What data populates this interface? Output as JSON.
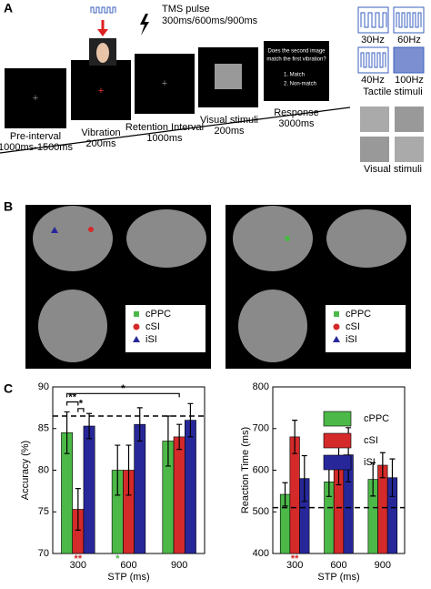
{
  "panel_a": {
    "label": "A",
    "tms": [
      "TMS pulse",
      "300ms/600ms/900ms"
    ],
    "screens": [
      {
        "name": "Pre-interval",
        "time": "1000ms-1500ms"
      },
      {
        "name": "Vibration",
        "time": "200ms"
      },
      {
        "name": "Retention Interval",
        "time": "1000ms"
      },
      {
        "name": "Visual stimuli",
        "time": "200ms"
      },
      {
        "name": "Response",
        "time": "3000ms"
      }
    ],
    "response_text": [
      "Does the second image",
      "match the first vibration?",
      "1. Match",
      "2. Non-match"
    ],
    "frequencies": [
      "30Hz",
      "60Hz",
      "40Hz",
      "100Hz"
    ],
    "tactile_label": "Tactile stimuli",
    "visual_label": "Visual stimuli"
  },
  "panel_b": {
    "label": "B",
    "legends": [
      [
        "cPPC",
        "cSI",
        "iSI"
      ],
      [
        "cPPC",
        "cSI",
        "iSI"
      ]
    ]
  },
  "panel_c": {
    "label": "C"
  },
  "chart_data": [
    {
      "type": "bar",
      "y_label": "Accuracy (%)",
      "x_label": "STP (ms)",
      "categories": [
        "300",
        "600",
        "900"
      ],
      "series": [
        {
          "name": "cPPC",
          "color": "#4cb848",
          "values": [
            84.5,
            80,
            83.5
          ],
          "errors": [
            2.5,
            3,
            3
          ]
        },
        {
          "name": "cSI",
          "color": "#d42a2a",
          "values": [
            75.3,
            80,
            84
          ],
          "errors": [
            2.5,
            3,
            1.5
          ]
        },
        {
          "name": "iSI",
          "color": "#27279a",
          "values": [
            85.3,
            85.5,
            86
          ],
          "errors": [
            1.5,
            2,
            2
          ]
        }
      ],
      "ylim": [
        70,
        90
      ],
      "yticks": [
        70,
        75,
        80,
        85,
        90
      ],
      "reference_line": 86.5,
      "annotations": [
        {
          "text": "**",
          "color": "#000000"
        },
        {
          "text": "*",
          "color": "#000000"
        },
        {
          "text": "*",
          "color": "#000000"
        },
        {
          "text": "**",
          "color": "#d42a2a"
        },
        {
          "text": "*",
          "color": "#4cb848"
        }
      ],
      "legend": false
    },
    {
      "type": "bar",
      "y_label": "Reaction Time (ms)",
      "x_label": "STP (ms)",
      "categories": [
        "300",
        "600",
        "900"
      ],
      "series": [
        {
          "name": "cPPC",
          "color": "#4cb848",
          "values": [
            542,
            572,
            578
          ],
          "errors": [
            28,
            35,
            40
          ]
        },
        {
          "name": "cSI",
          "color": "#d42a2a",
          "values": [
            680,
            610,
            612
          ],
          "errors": [
            40,
            45,
            30
          ]
        },
        {
          "name": "iSI",
          "color": "#27279a",
          "values": [
            580,
            637,
            582
          ],
          "errors": [
            55,
            65,
            45
          ]
        }
      ],
      "ylim": [
        400,
        800
      ],
      "yticks": [
        400,
        500,
        600,
        700,
        800
      ],
      "reference_line": 510,
      "annotations": [
        {
          "text": "**",
          "color": "#d42a2a"
        }
      ],
      "legend": true
    }
  ]
}
